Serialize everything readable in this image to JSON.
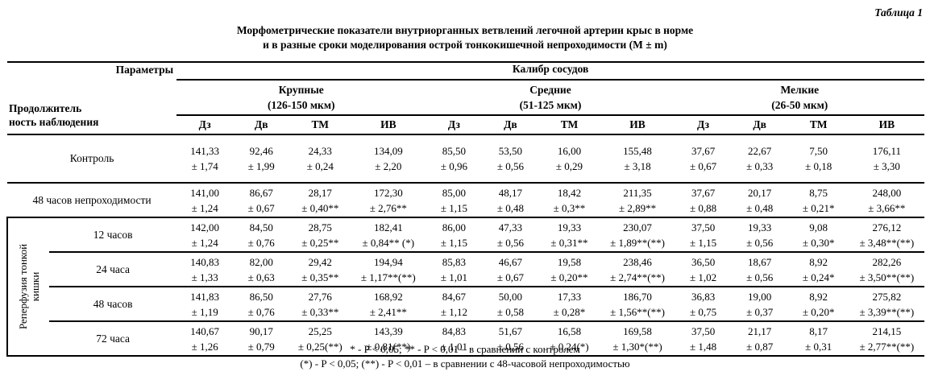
{
  "page": {
    "table_label": "Таблица 1",
    "title_line1": "Морфометрические показатели внутриорганных ветвлений легочной артерии крыс в норме",
    "title_line2": "и в разные сроки моделирования острой тонкокишечной непроходимости (M ± m)",
    "footnote1": "* - P < 0,05; ** - P < 0,01 – в сравнении с контролем",
    "footnote2": "(*) - P < 0,05; (**) - P < 0,01 – в сравнении с 48-часовой непроходимостью"
  },
  "table": {
    "corner_top": "Параметры",
    "corner_bottom": "Продолжитель\nность наблюдения",
    "caliber_header": "Калибр сосудов",
    "groups": [
      {
        "name": "Крупные",
        "range": "(126-150 мкм)"
      },
      {
        "name": "Средние",
        "range": "(51-125 мкм)"
      },
      {
        "name": "Мелкие",
        "range": "(26-50 мкм)"
      }
    ],
    "subcolumns": [
      "Дз",
      "Дв",
      "ТМ",
      "ИВ"
    ],
    "reperfusion_label": "Реперфузия тонкой\nкишки",
    "rows": [
      {
        "label": "Контроль",
        "section": "main",
        "cells": [
          [
            "141,33",
            "± 1,74"
          ],
          [
            "92,46",
            "± 1,99"
          ],
          [
            "24,33",
            "± 0,24"
          ],
          [
            "134,09",
            "± 2,20"
          ],
          [
            "85,50",
            "± 0,96"
          ],
          [
            "53,50",
            "± 0,56"
          ],
          [
            "16,00",
            "± 0,29"
          ],
          [
            "155,48",
            "± 3,18"
          ],
          [
            "37,67",
            "± 0,67"
          ],
          [
            "22,67",
            "± 0,33"
          ],
          [
            "7,50",
            "± 0,18"
          ],
          [
            "176,11",
            "± 3,30"
          ]
        ]
      },
      {
        "label": "48 часов непроходимости",
        "section": "main",
        "cells": [
          [
            "141,00",
            "± 1,24"
          ],
          [
            "86,67",
            "± 0,67"
          ],
          [
            "28,17",
            "± 0,40**"
          ],
          [
            "172,30",
            "± 2,76**"
          ],
          [
            "85,00",
            "± 1,15"
          ],
          [
            "48,17",
            "± 0,48"
          ],
          [
            "18,42",
            "± 0,3**"
          ],
          [
            "211,35",
            "± 2,89**"
          ],
          [
            "37,67",
            "± 0,88"
          ],
          [
            "20,17",
            "± 0,48"
          ],
          [
            "8,75",
            "± 0,21*"
          ],
          [
            "248,00",
            "± 3,66**"
          ]
        ]
      },
      {
        "label": "12 часов",
        "section": "reperfusion",
        "cells": [
          [
            "142,00",
            "± 1,24"
          ],
          [
            "84,50",
            "± 0,76"
          ],
          [
            "28,75",
            "± 0,25**"
          ],
          [
            "182,41",
            "± 0,84** (*)"
          ],
          [
            "86,00",
            "± 1,15"
          ],
          [
            "47,33",
            "± 0,56"
          ],
          [
            "19,33",
            "± 0,31**"
          ],
          [
            "230,07",
            "± 1,89**(**)"
          ],
          [
            "37,50",
            "± 1,15"
          ],
          [
            "19,33",
            "± 0,56"
          ],
          [
            "9,08",
            "± 0,30*"
          ],
          [
            "276,12",
            "± 3,48**(**)"
          ]
        ]
      },
      {
        "label": "24 часа",
        "section": "reperfusion",
        "cells": [
          [
            "140,83",
            "± 1,33"
          ],
          [
            "82,00",
            "± 0,63"
          ],
          [
            "29,42",
            "± 0,35**"
          ],
          [
            "194,94",
            "± 1,17**(**)"
          ],
          [
            "85,83",
            "± 1,01"
          ],
          [
            "46,67",
            "± 0,67"
          ],
          [
            "19,58",
            "± 0,20**"
          ],
          [
            "238,46",
            "± 2,74**(**)"
          ],
          [
            "36,50",
            "± 1,02"
          ],
          [
            "18,67",
            "± 0,56"
          ],
          [
            "8,92",
            "± 0,24*"
          ],
          [
            "282,26",
            "± 3,50**(**)"
          ]
        ]
      },
      {
        "label": "48 часов",
        "section": "reperfusion",
        "cells": [
          [
            "141,83",
            "± 1,19"
          ],
          [
            "86,50",
            "± 0,76"
          ],
          [
            "27,76",
            "± 0,33**"
          ],
          [
            "168,92",
            "± 2,41**"
          ],
          [
            "84,67",
            "± 1,12"
          ],
          [
            "50,00",
            "± 0,58"
          ],
          [
            "17,33",
            "± 0,28*"
          ],
          [
            "186,70",
            "± 1,56**(**)"
          ],
          [
            "36,83",
            "± 0,75"
          ],
          [
            "19,00",
            "± 0,37"
          ],
          [
            "8,92",
            "± 0,20*"
          ],
          [
            "275,82",
            "± 3,39**(**)"
          ]
        ]
      },
      {
        "label": "72 часа",
        "section": "reperfusion",
        "cells": [
          [
            "140,67",
            "± 1,26"
          ],
          [
            "90,17",
            "± 0,79"
          ],
          [
            "25,25",
            "± 0,25(**)"
          ],
          [
            "143,39",
            "± 0,81(**)"
          ],
          [
            "84,83",
            "± 1,01"
          ],
          [
            "51,67",
            "± 0,56"
          ],
          [
            "16,58",
            "± 0,24(*)"
          ],
          [
            "169,58",
            "± 1,30*(**)"
          ],
          [
            "37,50",
            "± 1,48"
          ],
          [
            "21,17",
            "± 0,87"
          ],
          [
            "8,17",
            "± 0,31"
          ],
          [
            "214,15",
            "± 2,77**(**)"
          ]
        ]
      }
    ]
  }
}
